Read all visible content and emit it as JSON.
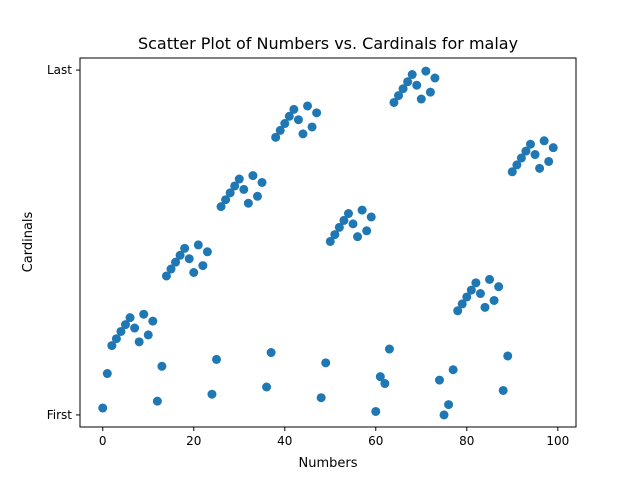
{
  "chart_data": {
    "type": "scatter",
    "title": "Scatter Plot of Numbers vs. Cardinals for malay",
    "xlabel": "Numbers",
    "ylabel": "Cardinals",
    "xlim": [
      -5,
      104
    ],
    "ylim": [
      -0.035,
      1.035
    ],
    "xticks": [
      0,
      20,
      40,
      60,
      80,
      100
    ],
    "xtick_labels": [
      "0",
      "20",
      "40",
      "60",
      "80",
      "100"
    ],
    "yticks": [
      0,
      1
    ],
    "ytick_labels": [
      "First",
      "Last"
    ],
    "grid": false,
    "marker_color": "#1f77b4",
    "points": [
      [
        0,
        0.02
      ],
      [
        1,
        0.12
      ],
      [
        2,
        0.201
      ],
      [
        3,
        0.221
      ],
      [
        4,
        0.242
      ],
      [
        5,
        0.262
      ],
      [
        6,
        0.282
      ],
      [
        7,
        0.252
      ],
      [
        8,
        0.212
      ],
      [
        9,
        0.292
      ],
      [
        10,
        0.232
      ],
      [
        11,
        0.272
      ],
      [
        12,
        0.04
      ],
      [
        13,
        0.141
      ],
      [
        14,
        0.403
      ],
      [
        15,
        0.423
      ],
      [
        16,
        0.443
      ],
      [
        17,
        0.463
      ],
      [
        18,
        0.483
      ],
      [
        19,
        0.453
      ],
      [
        20,
        0.413
      ],
      [
        21,
        0.493
      ],
      [
        22,
        0.433
      ],
      [
        23,
        0.473
      ],
      [
        24,
        0.06
      ],
      [
        25,
        0.161
      ],
      [
        26,
        0.604
      ],
      [
        27,
        0.624
      ],
      [
        28,
        0.644
      ],
      [
        29,
        0.664
      ],
      [
        30,
        0.684
      ],
      [
        31,
        0.654
      ],
      [
        32,
        0.614
      ],
      [
        33,
        0.694
      ],
      [
        34,
        0.634
      ],
      [
        35,
        0.674
      ],
      [
        36,
        0.081
      ],
      [
        37,
        0.181
      ],
      [
        38,
        0.805
      ],
      [
        39,
        0.825
      ],
      [
        40,
        0.845
      ],
      [
        41,
        0.866
      ],
      [
        42,
        0.886
      ],
      [
        43,
        0.856
      ],
      [
        44,
        0.815
      ],
      [
        45,
        0.896
      ],
      [
        46,
        0.835
      ],
      [
        47,
        0.876
      ],
      [
        48,
        0.05
      ],
      [
        49,
        0.151
      ],
      [
        50,
        0.503
      ],
      [
        51,
        0.523
      ],
      [
        52,
        0.544
      ],
      [
        53,
        0.564
      ],
      [
        54,
        0.584
      ],
      [
        55,
        0.554
      ],
      [
        56,
        0.517
      ],
      [
        57,
        0.594
      ],
      [
        58,
        0.534
      ],
      [
        59,
        0.574
      ],
      [
        60,
        0.01
      ],
      [
        61,
        0.111
      ],
      [
        62,
        0.091
      ],
      [
        63,
        0.191
      ],
      [
        64,
        0.906
      ],
      [
        65,
        0.926
      ],
      [
        66,
        0.946
      ],
      [
        67,
        0.966
      ],
      [
        68,
        0.987
      ],
      [
        69,
        0.956
      ],
      [
        70,
        0.916
      ],
      [
        71,
        0.997
      ],
      [
        72,
        0.936
      ],
      [
        73,
        0.977
      ],
      [
        74,
        0.101
      ],
      [
        75,
        0.0
      ],
      [
        76,
        0.03
      ],
      [
        77,
        0.131
      ],
      [
        78,
        0.302
      ],
      [
        79,
        0.322
      ],
      [
        80,
        0.342
      ],
      [
        81,
        0.362
      ],
      [
        82,
        0.383
      ],
      [
        83,
        0.352
      ],
      [
        84,
        0.312
      ],
      [
        85,
        0.393
      ],
      [
        86,
        0.332
      ],
      [
        87,
        0.372
      ],
      [
        88,
        0.071
      ],
      [
        89,
        0.171
      ],
      [
        90,
        0.705
      ],
      [
        91,
        0.725
      ],
      [
        92,
        0.745
      ],
      [
        93,
        0.765
      ],
      [
        94,
        0.785
      ],
      [
        95,
        0.755
      ],
      [
        96,
        0.715
      ],
      [
        97,
        0.795
      ],
      [
        98,
        0.735
      ],
      [
        99,
        0.775
      ]
    ]
  }
}
